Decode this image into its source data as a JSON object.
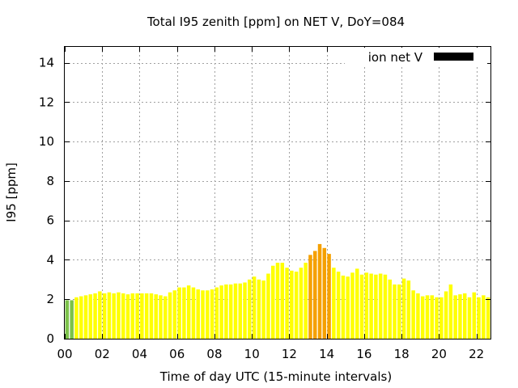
{
  "chart_data": {
    "type": "bar",
    "title": "Total I95 zenith [ppm] on NET V, DoY=084",
    "xlabel": "Time of day UTC (15-minute intervals)",
    "ylabel": "I95 [ppm]",
    "xlim": [
      0,
      22.75
    ],
    "ylim": [
      0,
      14.8
    ],
    "x_ticks": [
      0,
      2,
      4,
      6,
      8,
      10,
      12,
      14,
      16,
      18,
      20,
      22
    ],
    "x_tick_labels": [
      "00",
      "02",
      "04",
      "06",
      "08",
      "10",
      "12",
      "14",
      "16",
      "18",
      "20",
      "22"
    ],
    "y_ticks": [
      0,
      2,
      4,
      6,
      8,
      10,
      12,
      14
    ],
    "y_tick_labels": [
      "0",
      "2",
      "4",
      "6",
      "8",
      "10",
      "12",
      "14"
    ],
    "grid": true,
    "legend": {
      "label": "ion net V",
      "placement": "top-right",
      "color": "#000000"
    },
    "interval_hours": 0.25,
    "bar_start": 0,
    "values": [
      1.95,
      1.95,
      2.1,
      2.15,
      2.2,
      2.25,
      2.3,
      2.4,
      2.3,
      2.35,
      2.3,
      2.35,
      2.3,
      2.25,
      2.3,
      2.3,
      2.3,
      2.3,
      2.3,
      2.25,
      2.2,
      2.15,
      2.35,
      2.45,
      2.6,
      2.6,
      2.7,
      2.6,
      2.5,
      2.45,
      2.45,
      2.5,
      2.6,
      2.7,
      2.75,
      2.75,
      2.8,
      2.8,
      2.85,
      3.0,
      3.15,
      3.0,
      2.95,
      3.3,
      3.7,
      3.85,
      3.85,
      3.6,
      3.45,
      3.4,
      3.6,
      3.85,
      4.25,
      4.45,
      4.8,
      4.6,
      4.3,
      3.6,
      3.4,
      3.2,
      3.15,
      3.35,
      3.55,
      3.25,
      3.35,
      3.3,
      3.25,
      3.3,
      3.25,
      3.0,
      2.75,
      2.75,
      3.05,
      2.95,
      2.45,
      2.3,
      2.15,
      2.2,
      2.2,
      2.1,
      2.1,
      2.4,
      2.75,
      2.2,
      2.25,
      2.3,
      2.1,
      2.35,
      2.1,
      2.2,
      2.1
    ],
    "colors": [
      "#7cc24a",
      "#7cc24a",
      "#ffff00",
      "#ffff00",
      "#ffff00",
      "#ffff00",
      "#ffff00",
      "#ffff00",
      "#ffff00",
      "#ffff00",
      "#ffff00",
      "#ffff00",
      "#ffff00",
      "#ffff00",
      "#ffff00",
      "#ffff00",
      "#ffff00",
      "#ffff00",
      "#ffff00",
      "#ffff00",
      "#ffff00",
      "#ffff00",
      "#ffff00",
      "#ffff00",
      "#ffff00",
      "#ffff00",
      "#ffff00",
      "#ffff00",
      "#ffff00",
      "#ffff00",
      "#ffff00",
      "#ffff00",
      "#ffff00",
      "#ffff00",
      "#ffff00",
      "#ffff00",
      "#ffff00",
      "#ffff00",
      "#ffff00",
      "#ffff00",
      "#ffff00",
      "#ffff00",
      "#ffff00",
      "#ffff00",
      "#ffff00",
      "#ffff00",
      "#ffff00",
      "#ffff00",
      "#ffff00",
      "#ffff00",
      "#ffff00",
      "#ffff00",
      "#f5a000",
      "#f5a000",
      "#f5a000",
      "#f5a000",
      "#f5a000",
      "#ffff00",
      "#ffff00",
      "#ffff00",
      "#ffff00",
      "#ffff00",
      "#ffff00",
      "#ffff00",
      "#ffff00",
      "#ffff00",
      "#ffff00",
      "#ffff00",
      "#ffff00",
      "#ffff00",
      "#ffff00",
      "#ffff00",
      "#ffff00",
      "#ffff00",
      "#ffff00",
      "#ffff00",
      "#ffff00",
      "#ffff00",
      "#ffff00",
      "#ffff00",
      "#ffff00",
      "#ffff00",
      "#ffff00",
      "#ffff00",
      "#ffff00",
      "#ffff00",
      "#ffff00",
      "#ffff00",
      "#ffff00",
      "#ffff00",
      "#ffff00"
    ]
  }
}
